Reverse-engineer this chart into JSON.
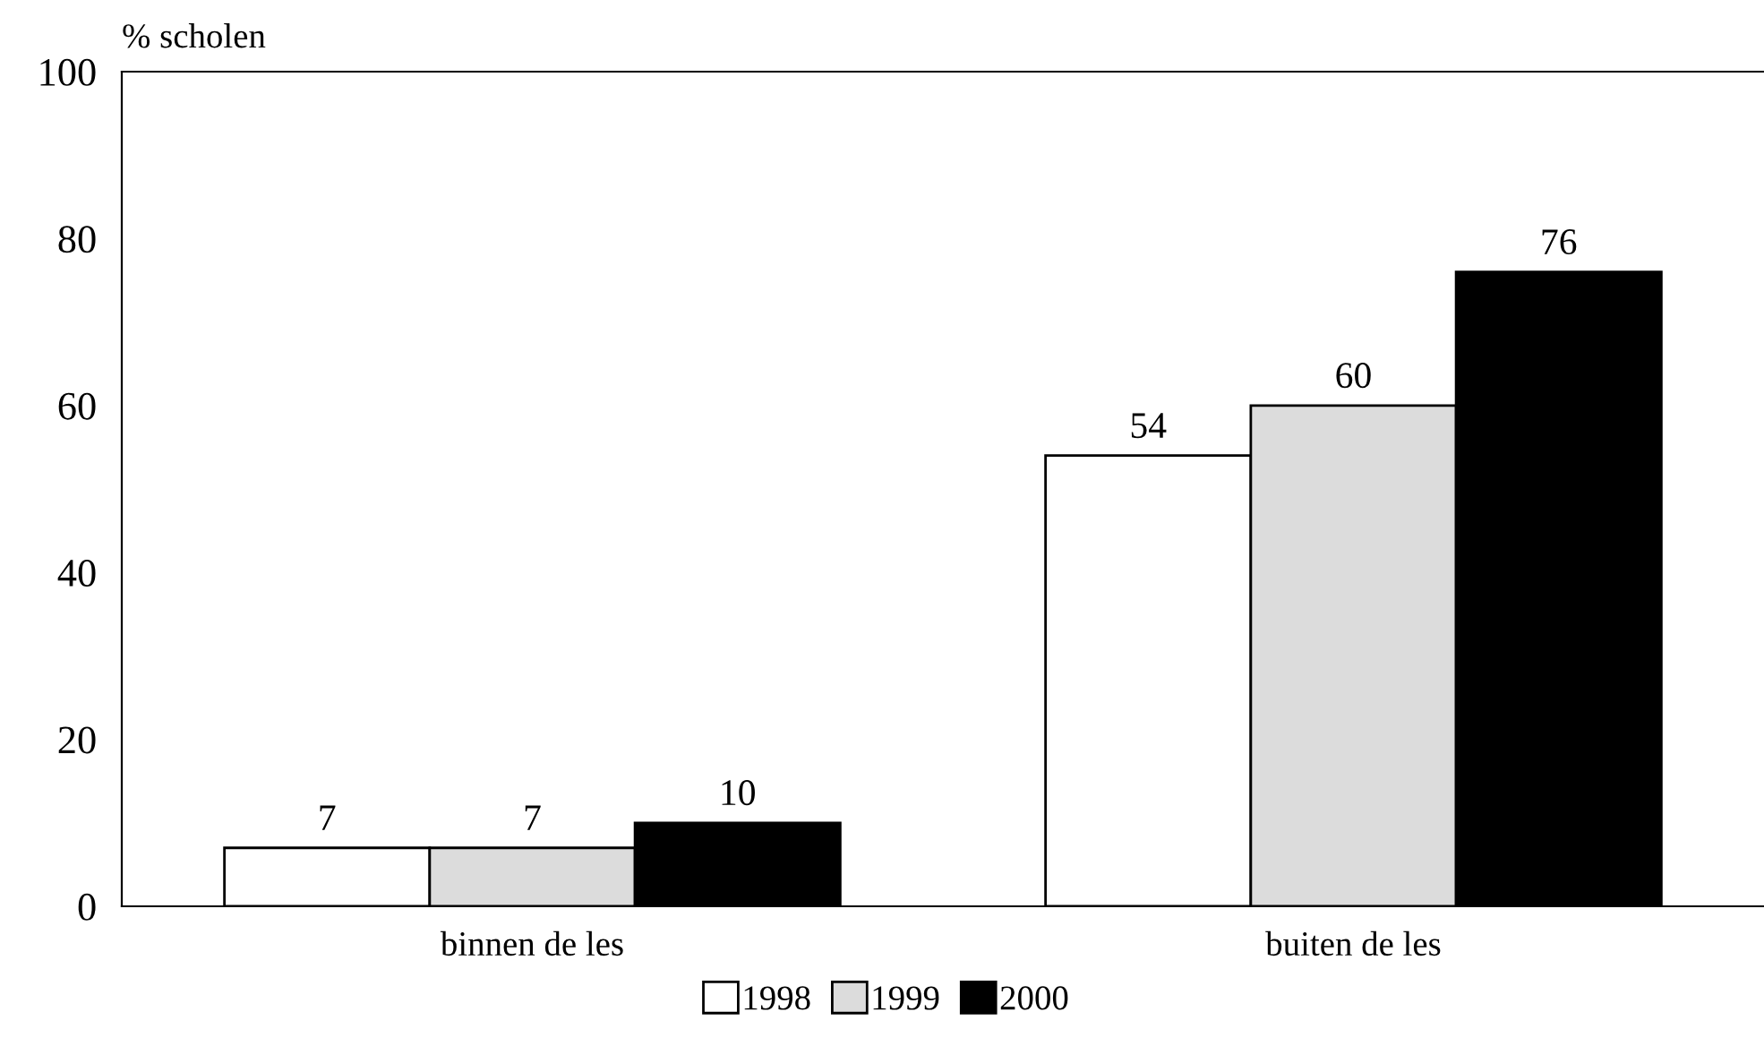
{
  "chart_data": {
    "type": "bar",
    "ylabel": "% scholen",
    "categories": [
      "binnen de les",
      "buiten de les"
    ],
    "series": [
      {
        "name": "1998",
        "color": "#ffffff",
        "values": [
          7,
          54
        ]
      },
      {
        "name": "1999",
        "color": "#dcdcdc",
        "values": [
          7,
          60
        ]
      },
      {
        "name": "2000",
        "color": "#000000",
        "values": [
          10,
          76
        ]
      }
    ],
    "ylim": [
      0,
      100
    ],
    "yticks": [
      0,
      20,
      40,
      60,
      80,
      100
    ],
    "grid": false,
    "legend": "bottom",
    "data_labels": true
  }
}
